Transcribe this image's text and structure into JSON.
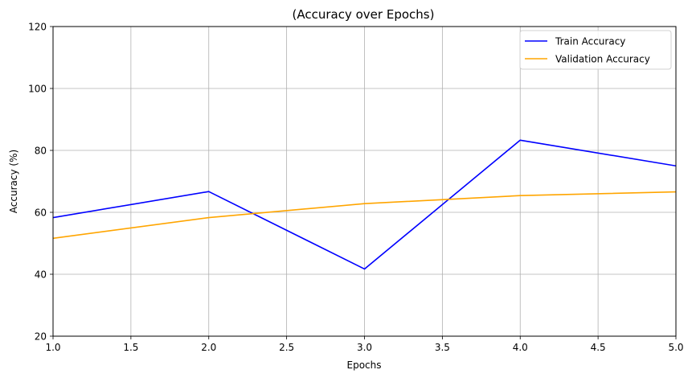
{
  "chart_data": {
    "type": "line",
    "title": "(Accuracy over Epochs)",
    "xlabel": "Epochs",
    "ylabel": "Accuracy (%)",
    "xlim": [
      1.0,
      5.0
    ],
    "ylim": [
      20,
      120
    ],
    "xticks": [
      "1.0",
      "1.5",
      "2.0",
      "2.5",
      "3.0",
      "3.5",
      "4.0",
      "4.5",
      "5.0"
    ],
    "yticks": [
      "20",
      "40",
      "60",
      "80",
      "100",
      "120"
    ],
    "grid": true,
    "legend_position": "top-right",
    "series": [
      {
        "name": "Train Accuracy",
        "color": "#0000ff",
        "x": [
          1,
          2,
          3,
          4,
          5
        ],
        "y": [
          58.3,
          66.7,
          41.7,
          83.3,
          75.0
        ]
      },
      {
        "name": "Validation Accuracy",
        "color": "#ffa500",
        "x": [
          1,
          2,
          3,
          4,
          5
        ],
        "y": [
          51.6,
          58.3,
          62.8,
          65.4,
          66.6
        ]
      }
    ]
  }
}
